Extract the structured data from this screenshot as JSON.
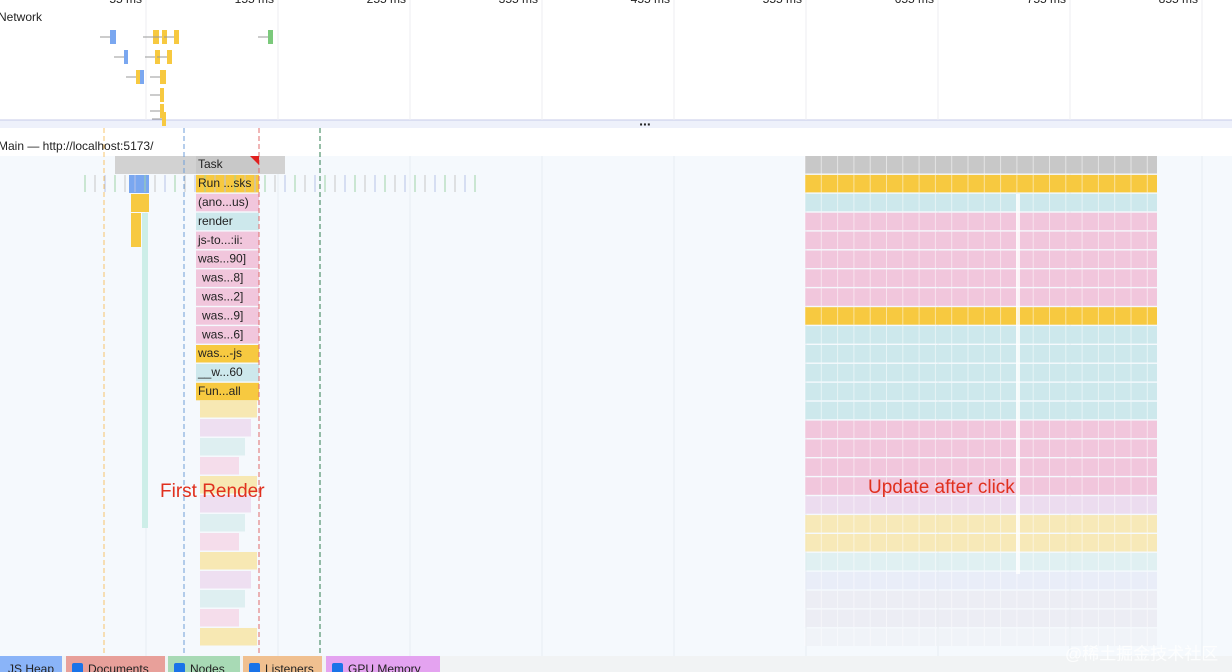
{
  "ruler": {
    "labels": [
      "55 ms",
      "155 ms",
      "255 ms",
      "355 ms",
      "455 ms",
      "555 ms",
      "655 ms",
      "755 ms",
      "855 ms"
    ]
  },
  "tracks": {
    "network": "Network",
    "divider_handle": "...",
    "main": "Main — http://localhost:5173/"
  },
  "flame": {
    "entries": [
      "Task",
      "Run ...sks",
      "(ano...us)",
      "render",
      "js-to...:ii:",
      "was...90]",
      "was...8]",
      "was...2]",
      "was...9]",
      "was...6]",
      "was...-js",
      "__w...60",
      "Fun...all"
    ]
  },
  "annotations": {
    "first_render": "First Render",
    "update": "Update after click"
  },
  "footer": {
    "checkboxes": [
      "JS Heap",
      "Documents",
      "Nodes",
      "Listeners",
      "GPU Memory"
    ]
  },
  "watermark": "@稀土掘金技术社区"
}
